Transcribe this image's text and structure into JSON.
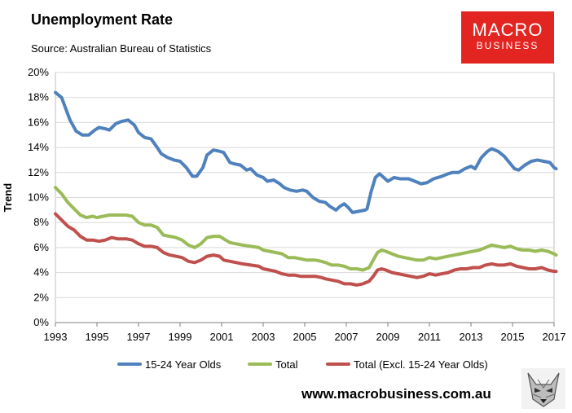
{
  "header": {
    "title": "Unemployment Rate",
    "source": "Source: Australian Bureau of Statistics"
  },
  "logo": {
    "line1": "MACRO",
    "line2": "BUSINESS"
  },
  "footer": {
    "url": "www.macrobusiness.com.au"
  },
  "colors": {
    "youth": "#4f81bd",
    "total": "#9bbb59",
    "excl": "#c0504d",
    "grid": "#d9d9d9",
    "logo": "#e32522"
  },
  "chart_data": {
    "type": "line",
    "title": "Unemployment Rate",
    "xlabel": "",
    "ylabel": "Trend",
    "xlim": [
      1993,
      2017
    ],
    "ylim": [
      0,
      20
    ],
    "y_ticks": [
      "0%",
      "2%",
      "4%",
      "6%",
      "8%",
      "10%",
      "12%",
      "14%",
      "16%",
      "18%",
      "20%"
    ],
    "x_ticks": [
      "1993",
      "1995",
      "1997",
      "1999",
      "2001",
      "2003",
      "2005",
      "2007",
      "2009",
      "2011",
      "2013",
      "2015",
      "2017"
    ],
    "legend_position": "bottom",
    "series": [
      {
        "name": "15-24 Year Olds",
        "color": "#4f81bd",
        "points": [
          [
            1993,
            18.4
          ],
          [
            1993.3,
            18.0
          ],
          [
            1993.7,
            16.2
          ],
          [
            1994,
            15.3
          ],
          [
            1994.3,
            15.0
          ],
          [
            1994.6,
            15.0
          ],
          [
            1994.9,
            15.4
          ],
          [
            1995.1,
            15.6
          ],
          [
            1995.4,
            15.5
          ],
          [
            1995.6,
            15.4
          ],
          [
            1995.9,
            15.9
          ],
          [
            1996.2,
            16.1
          ],
          [
            1996.5,
            16.2
          ],
          [
            1996.8,
            15.8
          ],
          [
            1997,
            15.2
          ],
          [
            1997.3,
            14.8
          ],
          [
            1997.6,
            14.7
          ],
          [
            1997.9,
            14.0
          ],
          [
            1998.1,
            13.5
          ],
          [
            1998.4,
            13.2
          ],
          [
            1998.7,
            13.0
          ],
          [
            1999,
            12.9
          ],
          [
            1999.3,
            12.4
          ],
          [
            1999.6,
            11.7
          ],
          [
            1999.8,
            11.7
          ],
          [
            2000.1,
            12.4
          ],
          [
            2000.3,
            13.4
          ],
          [
            2000.6,
            13.8
          ],
          [
            2000.9,
            13.7
          ],
          [
            2001.1,
            13.6
          ],
          [
            2001.4,
            12.8
          ],
          [
            2001.6,
            12.7
          ],
          [
            2001.9,
            12.6
          ],
          [
            2002.2,
            12.2
          ],
          [
            2002.4,
            12.3
          ],
          [
            2002.7,
            11.8
          ],
          [
            2003,
            11.6
          ],
          [
            2003.2,
            11.3
          ],
          [
            2003.5,
            11.4
          ],
          [
            2003.8,
            11.1
          ],
          [
            2004,
            10.8
          ],
          [
            2004.3,
            10.6
          ],
          [
            2004.6,
            10.5
          ],
          [
            2004.9,
            10.6
          ],
          [
            2005.1,
            10.5
          ],
          [
            2005.4,
            10.0
          ],
          [
            2005.7,
            9.7
          ],
          [
            2006,
            9.6
          ],
          [
            2006.2,
            9.3
          ],
          [
            2006.5,
            9.0
          ],
          [
            2006.7,
            9.3
          ],
          [
            2006.9,
            9.5
          ],
          [
            2007.1,
            9.2
          ],
          [
            2007.3,
            8.8
          ],
          [
            2007.6,
            8.9
          ],
          [
            2007.9,
            9.0
          ],
          [
            2008,
            9.1
          ],
          [
            2008.2,
            10.5
          ],
          [
            2008.4,
            11.6
          ],
          [
            2008.6,
            11.9
          ],
          [
            2008.8,
            11.6
          ],
          [
            2009,
            11.3
          ],
          [
            2009.3,
            11.6
          ],
          [
            2009.6,
            11.5
          ],
          [
            2010,
            11.5
          ],
          [
            2010.3,
            11.3
          ],
          [
            2010.6,
            11.1
          ],
          [
            2010.9,
            11.2
          ],
          [
            2011.2,
            11.5
          ],
          [
            2011.6,
            11.7
          ],
          [
            2011.9,
            11.9
          ],
          [
            2012.1,
            12.0
          ],
          [
            2012.4,
            12.0
          ],
          [
            2012.7,
            12.3
          ],
          [
            2013,
            12.5
          ],
          [
            2013.2,
            12.3
          ],
          [
            2013.5,
            13.2
          ],
          [
            2013.8,
            13.7
          ],
          [
            2014,
            13.9
          ],
          [
            2014.3,
            13.7
          ],
          [
            2014.6,
            13.3
          ],
          [
            2014.9,
            12.7
          ],
          [
            2015.1,
            12.3
          ],
          [
            2015.3,
            12.2
          ],
          [
            2015.6,
            12.6
          ],
          [
            2015.9,
            12.9
          ],
          [
            2016.2,
            13.0
          ],
          [
            2016.5,
            12.9
          ],
          [
            2016.8,
            12.8
          ],
          [
            2017,
            12.4
          ],
          [
            2017.1,
            12.3
          ]
        ]
      },
      {
        "name": "Total",
        "color": "#9bbb59",
        "points": [
          [
            1993,
            10.8
          ],
          [
            1993.3,
            10.3
          ],
          [
            1993.6,
            9.6
          ],
          [
            1993.9,
            9.1
          ],
          [
            1994.2,
            8.6
          ],
          [
            1994.5,
            8.4
          ],
          [
            1994.8,
            8.5
          ],
          [
            1995,
            8.4
          ],
          [
            1995.3,
            8.5
          ],
          [
            1995.6,
            8.6
          ],
          [
            1996,
            8.6
          ],
          [
            1996.4,
            8.6
          ],
          [
            1996.7,
            8.5
          ],
          [
            1997,
            8.0
          ],
          [
            1997.3,
            7.8
          ],
          [
            1997.6,
            7.8
          ],
          [
            1997.9,
            7.6
          ],
          [
            1998.2,
            7.0
          ],
          [
            1998.5,
            6.9
          ],
          [
            1998.8,
            6.8
          ],
          [
            1999.1,
            6.6
          ],
          [
            1999.4,
            6.2
          ],
          [
            1999.7,
            6.0
          ],
          [
            2000,
            6.3
          ],
          [
            2000.3,
            6.8
          ],
          [
            2000.6,
            6.9
          ],
          [
            2000.9,
            6.9
          ],
          [
            2001.1,
            6.7
          ],
          [
            2001.4,
            6.4
          ],
          [
            2001.7,
            6.3
          ],
          [
            2002,
            6.2
          ],
          [
            2002.4,
            6.1
          ],
          [
            2002.8,
            6.0
          ],
          [
            2003,
            5.8
          ],
          [
            2003.3,
            5.7
          ],
          [
            2003.6,
            5.6
          ],
          [
            2003.9,
            5.5
          ],
          [
            2004.2,
            5.2
          ],
          [
            2004.5,
            5.2
          ],
          [
            2004.8,
            5.1
          ],
          [
            2005.1,
            5.0
          ],
          [
            2005.5,
            5.0
          ],
          [
            2005.8,
            4.9
          ],
          [
            2006,
            4.8
          ],
          [
            2006.3,
            4.6
          ],
          [
            2006.6,
            4.6
          ],
          [
            2006.9,
            4.5
          ],
          [
            2007.2,
            4.3
          ],
          [
            2007.5,
            4.3
          ],
          [
            2007.8,
            4.2
          ],
          [
            2008.1,
            4.4
          ],
          [
            2008.3,
            5.0
          ],
          [
            2008.5,
            5.6
          ],
          [
            2008.7,
            5.8
          ],
          [
            2008.9,
            5.7
          ],
          [
            2009.2,
            5.5
          ],
          [
            2009.5,
            5.3
          ],
          [
            2009.8,
            5.2
          ],
          [
            2010.1,
            5.1
          ],
          [
            2010.4,
            5.0
          ],
          [
            2010.7,
            5.0
          ],
          [
            2011,
            5.2
          ],
          [
            2011.3,
            5.1
          ],
          [
            2011.6,
            5.2
          ],
          [
            2011.9,
            5.3
          ],
          [
            2012.2,
            5.4
          ],
          [
            2012.5,
            5.5
          ],
          [
            2012.8,
            5.6
          ],
          [
            2013.1,
            5.7
          ],
          [
            2013.4,
            5.8
          ],
          [
            2013.7,
            6.0
          ],
          [
            2014,
            6.2
          ],
          [
            2014.3,
            6.1
          ],
          [
            2014.6,
            6.0
          ],
          [
            2014.9,
            6.1
          ],
          [
            2015.2,
            5.9
          ],
          [
            2015.5,
            5.8
          ],
          [
            2015.8,
            5.8
          ],
          [
            2016.1,
            5.7
          ],
          [
            2016.4,
            5.8
          ],
          [
            2016.7,
            5.7
          ],
          [
            2017,
            5.5
          ],
          [
            2017.1,
            5.4
          ]
        ]
      },
      {
        "name": "Total (Excl. 15-24 Year Olds)",
        "color": "#c0504d",
        "points": [
          [
            1993,
            8.7
          ],
          [
            1993.3,
            8.2
          ],
          [
            1993.6,
            7.7
          ],
          [
            1993.9,
            7.4
          ],
          [
            1994.2,
            6.9
          ],
          [
            1994.5,
            6.6
          ],
          [
            1994.8,
            6.6
          ],
          [
            1995.1,
            6.5
          ],
          [
            1995.4,
            6.6
          ],
          [
            1995.7,
            6.8
          ],
          [
            1996,
            6.7
          ],
          [
            1996.4,
            6.7
          ],
          [
            1996.7,
            6.6
          ],
          [
            1997,
            6.3
          ],
          [
            1997.3,
            6.1
          ],
          [
            1997.6,
            6.1
          ],
          [
            1997.9,
            6.0
          ],
          [
            1998.2,
            5.6
          ],
          [
            1998.5,
            5.4
          ],
          [
            1998.8,
            5.3
          ],
          [
            1999.1,
            5.2
          ],
          [
            1999.4,
            4.9
          ],
          [
            1999.7,
            4.8
          ],
          [
            2000,
            5.0
          ],
          [
            2000.3,
            5.3
          ],
          [
            2000.6,
            5.4
          ],
          [
            2000.9,
            5.3
          ],
          [
            2001.1,
            5.0
          ],
          [
            2001.4,
            4.9
          ],
          [
            2001.7,
            4.8
          ],
          [
            2002,
            4.7
          ],
          [
            2002.4,
            4.6
          ],
          [
            2002.8,
            4.5
          ],
          [
            2003,
            4.3
          ],
          [
            2003.3,
            4.2
          ],
          [
            2003.6,
            4.1
          ],
          [
            2003.9,
            3.9
          ],
          [
            2004.2,
            3.8
          ],
          [
            2004.5,
            3.8
          ],
          [
            2004.8,
            3.7
          ],
          [
            2005.1,
            3.7
          ],
          [
            2005.5,
            3.7
          ],
          [
            2005.8,
            3.6
          ],
          [
            2006,
            3.5
          ],
          [
            2006.3,
            3.4
          ],
          [
            2006.6,
            3.3
          ],
          [
            2006.9,
            3.1
          ],
          [
            2007.2,
            3.1
          ],
          [
            2007.5,
            3.0
          ],
          [
            2007.8,
            3.1
          ],
          [
            2008.1,
            3.3
          ],
          [
            2008.3,
            3.7
          ],
          [
            2008.5,
            4.2
          ],
          [
            2008.7,
            4.3
          ],
          [
            2008.9,
            4.2
          ],
          [
            2009.2,
            4.0
          ],
          [
            2009.5,
            3.9
          ],
          [
            2009.8,
            3.8
          ],
          [
            2010.1,
            3.7
          ],
          [
            2010.4,
            3.6
          ],
          [
            2010.7,
            3.7
          ],
          [
            2011,
            3.9
          ],
          [
            2011.3,
            3.8
          ],
          [
            2011.6,
            3.9
          ],
          [
            2011.9,
            4.0
          ],
          [
            2012.2,
            4.2
          ],
          [
            2012.5,
            4.3
          ],
          [
            2012.8,
            4.3
          ],
          [
            2013.1,
            4.4
          ],
          [
            2013.4,
            4.4
          ],
          [
            2013.7,
            4.6
          ],
          [
            2014,
            4.7
          ],
          [
            2014.3,
            4.6
          ],
          [
            2014.6,
            4.6
          ],
          [
            2014.9,
            4.7
          ],
          [
            2015.2,
            4.5
          ],
          [
            2015.5,
            4.4
          ],
          [
            2015.8,
            4.3
          ],
          [
            2016.1,
            4.3
          ],
          [
            2016.4,
            4.4
          ],
          [
            2016.7,
            4.2
          ],
          [
            2017,
            4.1
          ],
          [
            2017.1,
            4.1
          ]
        ]
      }
    ]
  }
}
